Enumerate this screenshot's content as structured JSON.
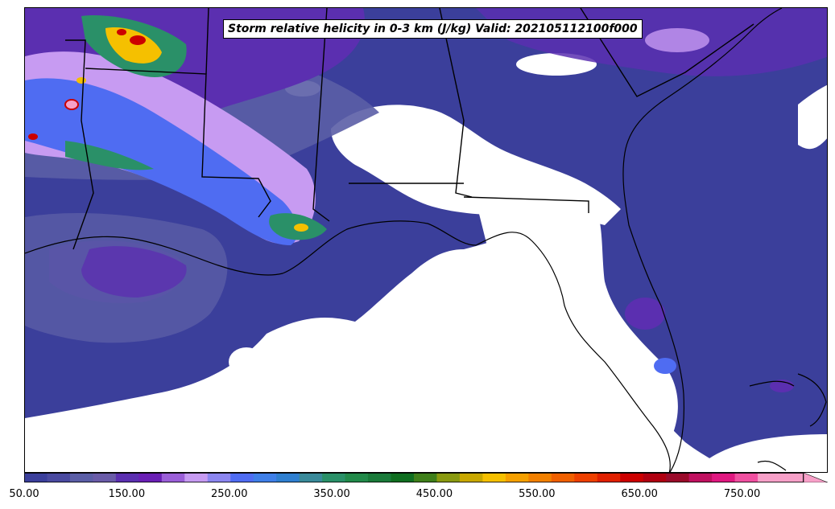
{
  "title": "Storm relative helicity in 0-3 km (J/kg) Valid: 202105112100f000",
  "colorbar": {
    "tick_labels": [
      "50.00",
      "150.00",
      "250.00",
      "350.00",
      "450.00",
      "550.00",
      "650.00",
      "750.00"
    ],
    "min": 50,
    "max": 810,
    "step": 20,
    "extend": "max",
    "colors": [
      "#3b3f9b",
      "#4a4aa0",
      "#5b5ea6",
      "#6a5ca8",
      "#5b2fb0",
      "#6a1fb5",
      "#9b5fd8",
      "#c79bf2",
      "#8c86f0",
      "#4f6cf2",
      "#3f7fe8",
      "#2f7fd0",
      "#3a8a9a",
      "#2a9068",
      "#228a4a",
      "#1a7a3a",
      "#0f6e20",
      "#3f7f1a",
      "#8a9a10",
      "#c9a800",
      "#f5c000",
      "#f5a000",
      "#f28000",
      "#f06000",
      "#ee4000",
      "#e02000",
      "#cc0000",
      "#b00010",
      "#9a0a2a",
      "#c01060",
      "#e01880",
      "#f050a0",
      "#f7a0c8",
      "#f7a0c8"
    ],
    "extend_color": "#f7a0c8"
  },
  "map": {
    "region": "Southeastern United States / Gulf of Mexico",
    "field_colors": {
      "background": "#3b3f9b",
      "low": "#5b5ea6",
      "medium": "#5b2fb0",
      "high": "#c79bf2",
      "higher": "#4f6cf2",
      "very_high": "#2a9068",
      "extreme": "#f5c000",
      "peak": "#cc0000",
      "max": "#f7a0c8",
      "below_min": "#ffffff"
    }
  }
}
